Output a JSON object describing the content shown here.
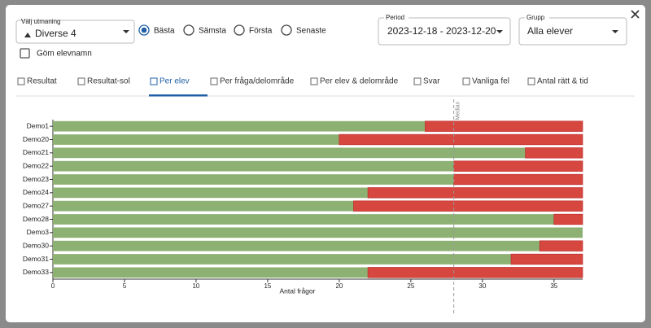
{
  "ui": {
    "challenge_label": "Välj utmaning",
    "challenge": "Diverse 4",
    "sort_options": [
      "Bästa",
      "Sämsta",
      "Första",
      "Senaste"
    ],
    "period_label": "Period",
    "period": "2023-12-18 - 2023-12-20",
    "group_label": "Grupp",
    "group": "Alla elever",
    "hide_names": "Göm elevnamn",
    "tabs": [
      "Resultat",
      "Resultat-sol",
      "Per elev",
      "Per fråga/delområde",
      "Per elev & delområde",
      "Svar",
      "Vanliga fel",
      "Antal rätt & tid"
    ]
  },
  "chart_data": {
    "type": "bar",
    "orientation": "horizontal",
    "stacked": true,
    "categories": [
      "Demo1",
      "Demo20",
      "Demo21",
      "Demo22",
      "Demo23",
      "Demo24",
      "Demo27",
      "Demo28",
      "Demo3",
      "Demo30",
      "Demo31",
      "Demo33"
    ],
    "series": [
      {
        "color": "#8db173",
        "values": [
          26,
          20,
          33,
          28,
          28,
          22,
          21,
          35,
          37,
          34,
          32,
          22
        ]
      },
      {
        "color": "#d5473f",
        "values": [
          11,
          17,
          4,
          9,
          9,
          15,
          16,
          2,
          0,
          3,
          5,
          15
        ]
      }
    ],
    "xlabel": "Antal frågor",
    "xlim": [
      0,
      37
    ],
    "xticks": [
      0,
      5,
      10,
      15,
      20,
      25,
      30,
      35
    ],
    "annotation": {
      "label": "Median",
      "value": 28
    }
  }
}
